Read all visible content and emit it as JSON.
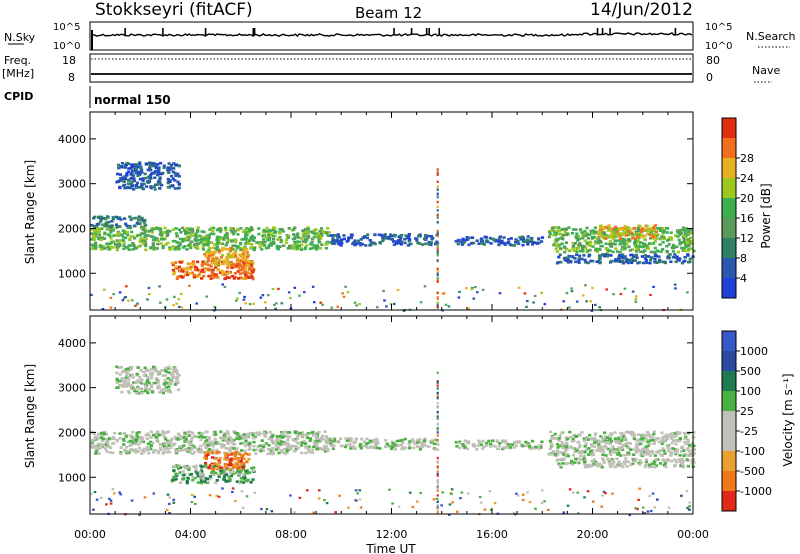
{
  "header": {
    "station": "Stokkseyri (fitACF)",
    "beam": "Beam 12",
    "date": "14/Jun/2012"
  },
  "top_panels": {
    "nsky_label": "N.Sky",
    "nsky_ticks": [
      "10^5",
      "10^0"
    ],
    "nsearch_label": "N.Search",
    "nsearch_ticks": [
      "10^5",
      "10^0"
    ],
    "freq_label": "Freq.",
    "freq_unit": "[MHz]",
    "freq_ticks": [
      "18",
      "8"
    ],
    "nave_label": "Nave",
    "nave_ticks": [
      "80",
      "0"
    ],
    "cpid_label": "CPID",
    "cpid_value": "normal 150"
  },
  "colors": {
    "power": [
      "#2040d8",
      "#2a58b0",
      "#2e8066",
      "#5a9a5a",
      "#3cb050",
      "#9cc820",
      "#e8b020",
      "#f07020",
      "#e03010"
    ],
    "velocity": [
      "#3858c8",
      "#2a4aa0",
      "#1e7a50",
      "#4ab040",
      "#c0c0b8",
      "#c0c0b8",
      "#e8a030",
      "#f07818",
      "#e02818"
    ]
  },
  "chart_data": [
    {
      "type": "heatmap",
      "title": "Power",
      "ylabel": "Slant Range [km]",
      "ylim": [
        180,
        4600
      ],
      "yticks": [
        "1000",
        "2000",
        "3000",
        "4000"
      ],
      "xticks": [
        "00:00",
        "04:00",
        "08:00",
        "12:00",
        "16:00",
        "20:00",
        "00:00"
      ],
      "colorbar_label": "Power [dB]",
      "colorbar_ticks": [
        "4",
        "8",
        "12",
        "16",
        "20",
        "24",
        "28"
      ],
      "regions": [
        {
          "t0": 0.0,
          "t1": 9.5,
          "r0": 1550,
          "r1": 2050,
          "level": 4
        },
        {
          "t0": 3.2,
          "t1": 6.5,
          "r0": 900,
          "r1": 1300,
          "level": 7
        },
        {
          "t0": 4.5,
          "t1": 6.3,
          "r0": 1200,
          "r1": 1600,
          "level": 6
        },
        {
          "t0": 0.0,
          "t1": 2.2,
          "r0": 2050,
          "r1": 2300,
          "level": 2
        },
        {
          "t0": 1.0,
          "t1": 3.5,
          "r0": 2900,
          "r1": 3500,
          "level": 1
        },
        {
          "t0": 9.5,
          "t1": 13.8,
          "r0": 1650,
          "r1": 1900,
          "level": 1
        },
        {
          "t0": 14.5,
          "t1": 18.0,
          "r0": 1650,
          "r1": 1850,
          "level": 1
        },
        {
          "t0": 18.2,
          "t1": 24.0,
          "r0": 1500,
          "r1": 2050,
          "level": 4
        },
        {
          "t0": 20.2,
          "t1": 22.5,
          "r0": 1800,
          "r1": 2100,
          "level": 6
        },
        {
          "t0": 18.5,
          "t1": 24.0,
          "r0": 1250,
          "r1": 1450,
          "level": 1
        }
      ]
    },
    {
      "type": "heatmap",
      "title": "Velocity",
      "ylabel": "Slant Range [km]",
      "ylim": [
        180,
        4600
      ],
      "yticks": [
        "1000",
        "2000",
        "3000",
        "4000"
      ],
      "xticks": [
        "00:00",
        "04:00",
        "08:00",
        "12:00",
        "16:00",
        "20:00",
        "00:00"
      ],
      "xlabel": "Time UT",
      "colorbar_label": "Velocity [m s⁻¹]",
      "colorbar_ticks": [
        "1000",
        "500",
        "100",
        "25",
        "-25",
        "-100",
        "-500",
        "-1000"
      ],
      "regions": [
        {
          "t0": 0.0,
          "t1": 9.5,
          "r0": 1550,
          "r1": 2050,
          "level": 4
        },
        {
          "t0": 3.2,
          "t1": 6.5,
          "r0": 900,
          "r1": 1300,
          "level": 3
        },
        {
          "t0": 4.5,
          "t1": 6.3,
          "r0": 1200,
          "r1": 1600,
          "level": 7
        },
        {
          "t0": 1.0,
          "t1": 3.5,
          "r0": 2900,
          "r1": 3500,
          "level": 4
        },
        {
          "t0": 9.5,
          "t1": 13.8,
          "r0": 1650,
          "r1": 1900,
          "level": 4
        },
        {
          "t0": 14.5,
          "t1": 18.0,
          "r0": 1650,
          "r1": 1850,
          "level": 4
        },
        {
          "t0": 18.2,
          "t1": 24.0,
          "r0": 1500,
          "r1": 2050,
          "level": 4
        },
        {
          "t0": 18.5,
          "t1": 24.0,
          "r0": 1250,
          "r1": 1450,
          "level": 4
        }
      ]
    }
  ]
}
